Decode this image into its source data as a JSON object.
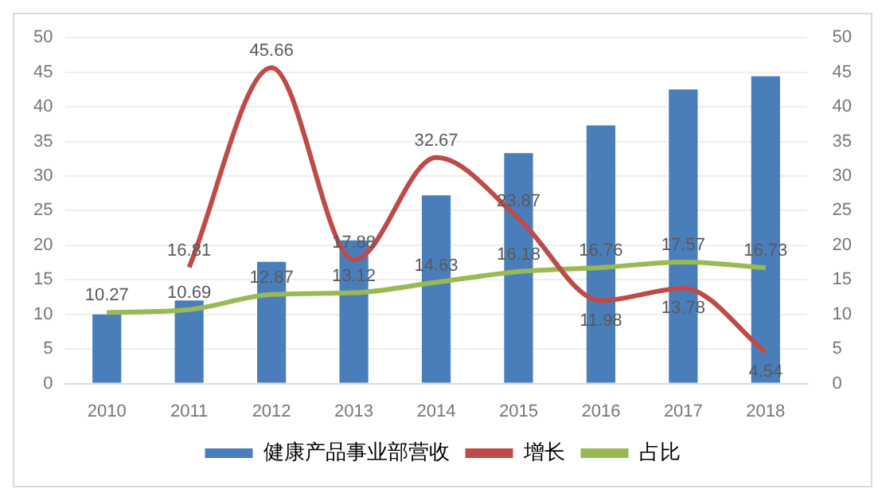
{
  "chart_data": {
    "type": "bar",
    "categories": [
      "2010",
      "2011",
      "2012",
      "2013",
      "2014",
      "2015",
      "2016",
      "2017",
      "2018"
    ],
    "series": [
      {
        "name": "健康产品事业部营收",
        "color": "#4a7ebb",
        "values": [
          10,
          12,
          17.6,
          20.7,
          27.2,
          33.3,
          37.3,
          42.5,
          44.4
        ]
      },
      {
        "name": "增长",
        "type": "line",
        "color": "#be4b48",
        "values": [
          null,
          16.81,
          45.66,
          17.88,
          32.67,
          23.87,
          11.98,
          13.78,
          4.54
        ],
        "value_labels": [
          null,
          "16.81",
          "45.66",
          "17.88",
          "32.67",
          "23.87",
          "11.98",
          "13.78",
          "4.54"
        ]
      },
      {
        "name": "占比",
        "type": "line",
        "color": "#98b954",
        "values": [
          10.27,
          10.69,
          12.87,
          13.12,
          14.63,
          16.18,
          16.76,
          17.57,
          16.73
        ],
        "value_labels": [
          "10.27",
          "10.69",
          "12.87",
          "13.12",
          "14.63",
          "16.18",
          "16.76",
          "17.57",
          "16.73"
        ]
      }
    ],
    "ylim": [
      0,
      50
    ],
    "yticks": [
      0,
      5,
      10,
      15,
      20,
      25,
      30,
      35,
      40,
      45,
      50
    ],
    "y2lim": [
      0,
      50
    ],
    "y2ticks": [
      0,
      5,
      10,
      15,
      20,
      25,
      30,
      35,
      40,
      45,
      50
    ],
    "grid": "y",
    "legend": "bottom",
    "marker": "none"
  }
}
